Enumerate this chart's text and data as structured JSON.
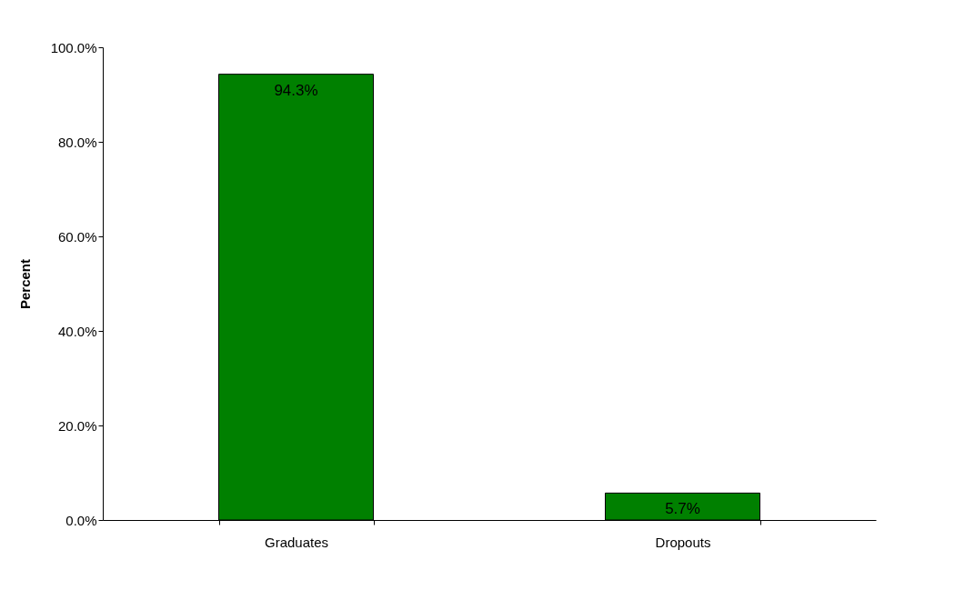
{
  "chart_data": {
    "type": "bar",
    "ylabel": "Percent",
    "categories": [
      "Graduates",
      "Dropouts"
    ],
    "series": [
      {
        "color": "#008000",
        "values": [
          94.3,
          5.7
        ],
        "value_labels": [
          "94.3%",
          "5.7%"
        ]
      }
    ],
    "ylim": [
      0,
      100
    ],
    "yticks": [
      {
        "value": 0,
        "label": "0.0%"
      },
      {
        "value": 20,
        "label": "20.0%"
      },
      {
        "value": 40,
        "label": "40.0%"
      },
      {
        "value": 60,
        "label": "60.0%"
      },
      {
        "value": 80,
        "label": "80.0%"
      },
      {
        "value": 100,
        "label": "100.0%"
      }
    ],
    "grid": false
  }
}
